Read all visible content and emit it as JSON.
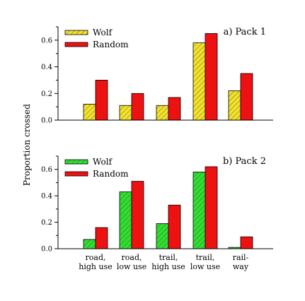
{
  "chart_data": [
    {
      "type": "bar",
      "title": "a) Pack 1",
      "categories": [
        "road, high use",
        "road, low use",
        "trail, high use",
        "trail, low use",
        "rail-way"
      ],
      "series": [
        {
          "name": "Wolf",
          "values": [
            0.12,
            0.11,
            0.11,
            0.58,
            0.22
          ],
          "color": "#f2e22c",
          "pattern": "hatched"
        },
        {
          "name": "Random",
          "values": [
            0.3,
            0.2,
            0.17,
            0.65,
            0.35
          ],
          "color": "#ee1111"
        }
      ],
      "ylim": [
        0,
        0.7
      ],
      "yticks": [
        "0.0",
        "0.2",
        "0.4",
        "0.6"
      ],
      "legend": "top-left",
      "grid": false
    },
    {
      "type": "bar",
      "title": "b) Pack 2",
      "categories": [
        "road, high use",
        "road, low use",
        "trail, high use",
        "trail, low use",
        "rail-way"
      ],
      "series": [
        {
          "name": "Wolf",
          "values": [
            0.07,
            0.43,
            0.19,
            0.58,
            0.01
          ],
          "color": "#33dd33",
          "pattern": "hatched"
        },
        {
          "name": "Random",
          "values": [
            0.16,
            0.51,
            0.33,
            0.62,
            0.09
          ],
          "color": "#ee1111"
        }
      ],
      "ylim": [
        0,
        0.7
      ],
      "yticks": [
        "0.0",
        "0.2",
        "0.4",
        "0.6"
      ],
      "legend": "top-left",
      "grid": false
    }
  ],
  "ylabel": "Proportion crossed",
  "category_labels": [
    [
      "road,",
      "high use"
    ],
    [
      "road,",
      "low use"
    ],
    [
      "trail,",
      "high use"
    ],
    [
      "trail,",
      "low use"
    ],
    [
      "rail-",
      "way"
    ]
  ]
}
